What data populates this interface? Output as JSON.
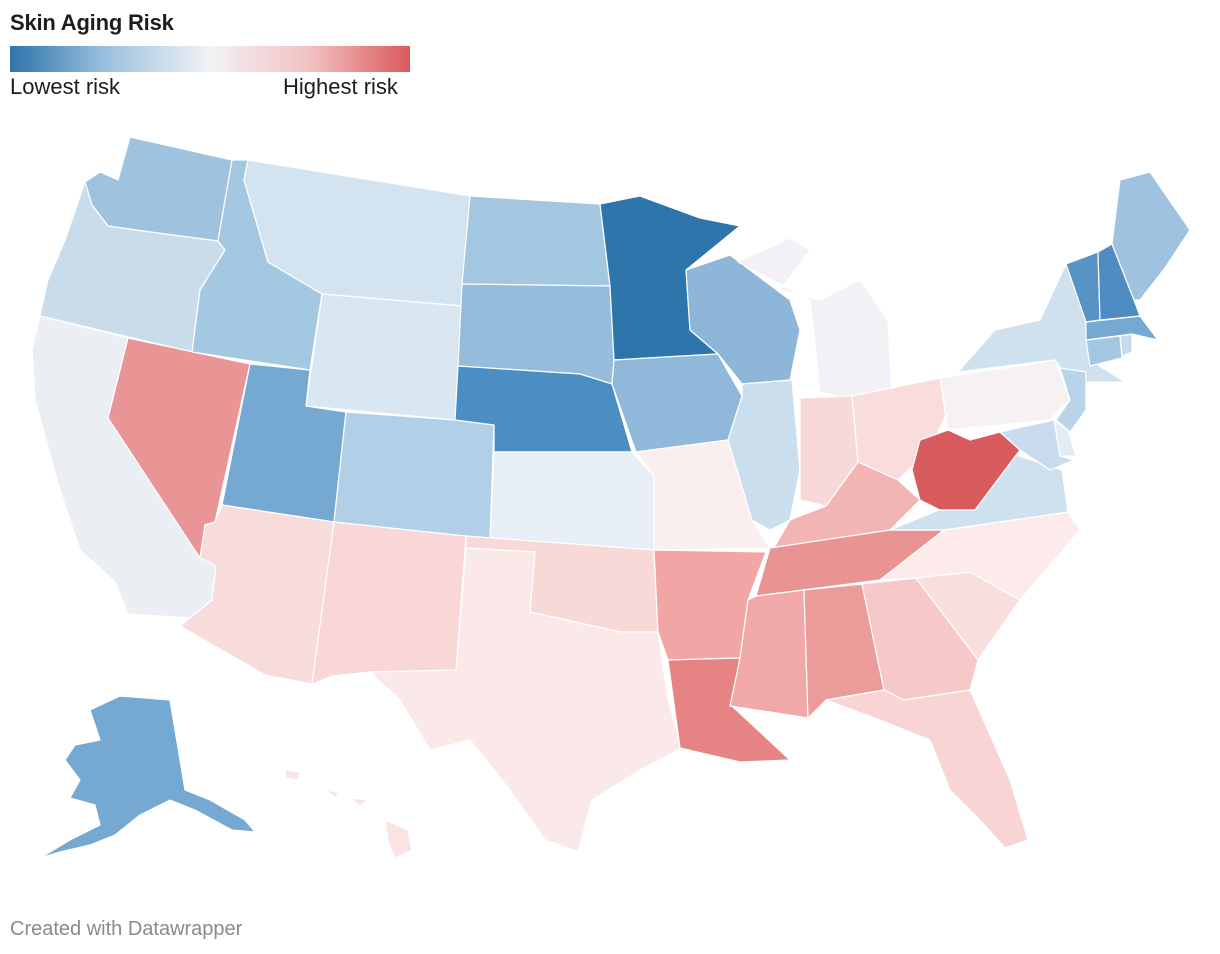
{
  "title": "Skin Aging Risk",
  "legend": {
    "low_label": "Lowest risk",
    "high_label": "Highest risk",
    "colors": [
      "#2e75ab",
      "#9fc3df",
      "#f2f2f5",
      "#f3c1c1",
      "#d9595b"
    ]
  },
  "credit": "Created with Datawrapper",
  "states": {
    "WA": {
      "name": "Washington",
      "color": "#9fc3df"
    },
    "OR": {
      "name": "Oregon",
      "color": "#c8dcec"
    },
    "CA": {
      "name": "California",
      "color": "#ebeff4"
    },
    "NV": {
      "name": "Nevada",
      "color": "#e99596"
    },
    "ID": {
      "name": "Idaho",
      "color": "#a5c8e2"
    },
    "MT": {
      "name": "Montana",
      "color": "#d3e4f0"
    },
    "WY": {
      "name": "Wyoming",
      "color": "#d9e7f2"
    },
    "UT": {
      "name": "Utah",
      "color": "#76a9d2"
    },
    "AZ": {
      "name": "Arizona",
      "color": "#f8dcdc"
    },
    "CO": {
      "name": "Colorado",
      "color": "#b1cfe6"
    },
    "NM": {
      "name": "New Mexico",
      "color": "#f8d7d6"
    },
    "ND": {
      "name": "North Dakota",
      "color": "#a3c6e1"
    },
    "SD": {
      "name": "South Dakota",
      "color": "#95bcdc"
    },
    "NE": {
      "name": "Nebraska",
      "color": "#4b8ec3"
    },
    "KS": {
      "name": "Kansas",
      "color": "#e7eef6"
    },
    "OK": {
      "name": "Oklahoma",
      "color": "#f8d9d8"
    },
    "TX": {
      "name": "Texas",
      "color": "#fbe9e9"
    },
    "MN": {
      "name": "Minnesota",
      "color": "#2e75ab"
    },
    "IA": {
      "name": "Iowa",
      "color": "#8fb8da"
    },
    "MO": {
      "name": "Missouri",
      "color": "#fbeeee"
    },
    "AR": {
      "name": "Arkansas",
      "color": "#f1a5a5"
    },
    "LA": {
      "name": "Louisiana",
      "color": "#e68384"
    },
    "WI": {
      "name": "Wisconsin",
      "color": "#8db6d9"
    },
    "IL": {
      "name": "Illinois",
      "color": "#cadeee"
    },
    "MI": {
      "name": "Michigan",
      "color": "#f3f1f5"
    },
    "IN": {
      "name": "Indiana",
      "color": "#f8d9d9"
    },
    "OH": {
      "name": "Ohio",
      "color": "#f9dcdc"
    },
    "KY": {
      "name": "Kentucky",
      "color": "#f3b4b4"
    },
    "TN": {
      "name": "Tennessee",
      "color": "#e99393"
    },
    "MS": {
      "name": "Mississippi",
      "color": "#f0a8a8"
    },
    "AL": {
      "name": "Alabama",
      "color": "#ec9b9b"
    },
    "GA": {
      "name": "Georgia",
      "color": "#f6c8c8"
    },
    "FL": {
      "name": "Florida",
      "color": "#f9d4d4"
    },
    "SC": {
      "name": "South Carolina",
      "color": "#f9dede"
    },
    "NC": {
      "name": "North Carolina",
      "color": "#fcebea"
    },
    "VA": {
      "name": "Virginia",
      "color": "#cee1ef"
    },
    "WV": {
      "name": "West Virginia",
      "color": "#d85b5d"
    },
    "PA": {
      "name": "Pennsylvania",
      "color": "#f6f2f4"
    },
    "NY": {
      "name": "New York",
      "color": "#cfe1ef"
    },
    "VT": {
      "name": "Vermont",
      "color": "#5893c5"
    },
    "NH": {
      "name": "New Hampshire",
      "color": "#4f8cc1"
    },
    "ME": {
      "name": "Maine",
      "color": "#9ec2df"
    },
    "MA": {
      "name": "Massachusetts",
      "color": "#76a9d2"
    },
    "CT": {
      "name": "Connecticut",
      "color": "#a4c7e2"
    },
    "RI": {
      "name": "Rhode Island",
      "color": "#c6dbec"
    },
    "NJ": {
      "name": "New Jersey",
      "color": "#b9d4ea"
    },
    "MD": {
      "name": "Maryland",
      "color": "#c8dcee"
    },
    "DE": {
      "name": "Delaware",
      "color": "#e2ecf5"
    },
    "AK": {
      "name": "Alaska",
      "color": "#76a9d2"
    },
    "HI": {
      "name": "Hawaii",
      "color": "#fae3e3"
    }
  }
}
